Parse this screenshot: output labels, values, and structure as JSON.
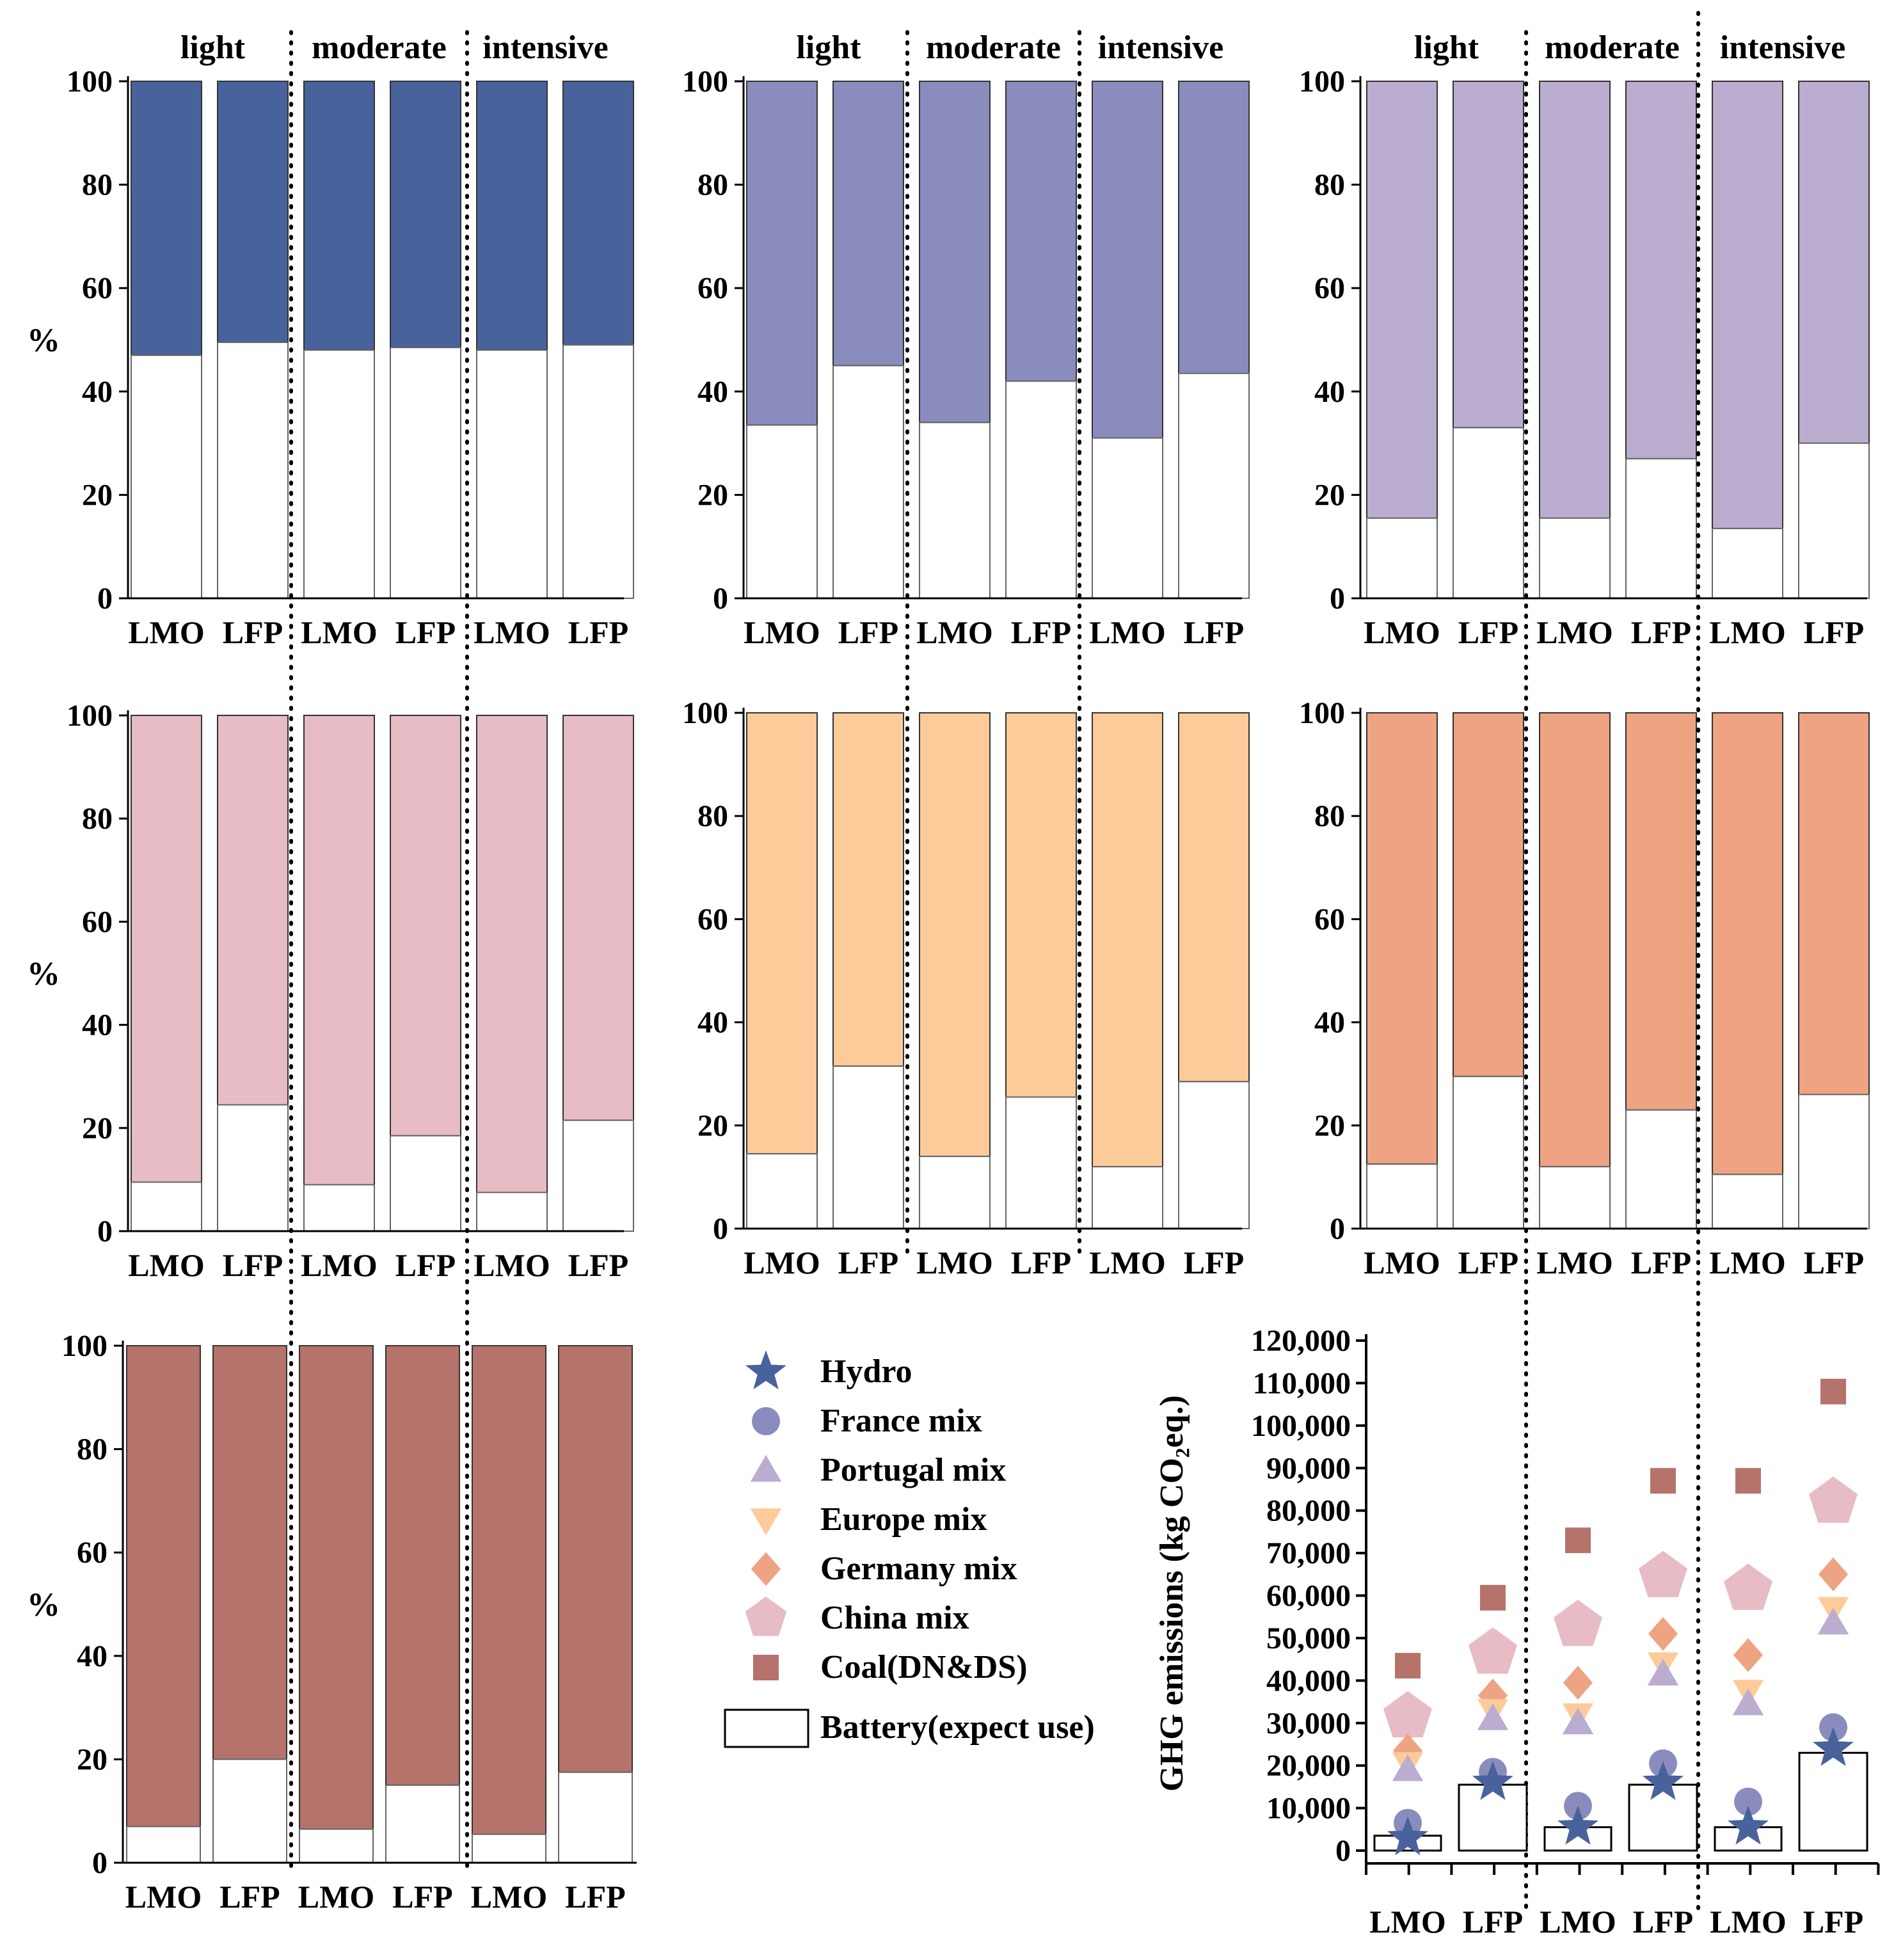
{
  "chart_data": [
    {
      "type": "bar",
      "stacked": true,
      "ylabel": "%",
      "ylim": [
        0,
        100
      ],
      "yticks": [
        "0",
        "20",
        "40",
        "60",
        "80",
        "100"
      ],
      "groups": [
        "light",
        "moderate",
        "intensive"
      ],
      "categories": [
        "LMO",
        "LFP",
        "LMO",
        "LFP",
        "LMO",
        "LFP"
      ],
      "battery_share": [
        47,
        49.5,
        48,
        48.5,
        48,
        49
      ],
      "color": "#48629b",
      "grid": false
    },
    {
      "type": "bar",
      "stacked": true,
      "ylabel": "",
      "ylim": [
        0,
        100
      ],
      "yticks": [
        "0",
        "20",
        "40",
        "60",
        "80",
        "100"
      ],
      "groups": [
        "light",
        "moderate",
        "intensive"
      ],
      "categories": [
        "LMO",
        "LFP",
        "LMO",
        "LFP",
        "LMO",
        "LFP"
      ],
      "battery_share": [
        33.5,
        45,
        34,
        42,
        31,
        43.5
      ],
      "color": "#8a8cbe",
      "grid": false
    },
    {
      "type": "bar",
      "stacked": true,
      "ylabel": "",
      "ylim": [
        0,
        100
      ],
      "yticks": [
        "0",
        "20",
        "40",
        "60",
        "80",
        "100"
      ],
      "groups": [
        "light",
        "moderate",
        "intensive"
      ],
      "categories": [
        "LMO",
        "LFP",
        "LMO",
        "LFP",
        "LMO",
        "LFP"
      ],
      "battery_share": [
        15.5,
        33,
        15.5,
        27,
        13.5,
        30
      ],
      "color": "#baadd0",
      "grid": false
    },
    {
      "type": "bar",
      "stacked": true,
      "ylabel": "%",
      "ylim": [
        0,
        100
      ],
      "yticks": [
        "0",
        "20",
        "40",
        "60",
        "80",
        "100"
      ],
      "groups": [],
      "categories": [
        "LMO",
        "LFP",
        "LMO",
        "LFP",
        "LMO",
        "LFP"
      ],
      "battery_share": [
        9.5,
        24.5,
        9,
        18.5,
        7.5,
        21.5
      ],
      "color": "#e7bcc5",
      "grid": false
    },
    {
      "type": "bar",
      "stacked": true,
      "ylabel": "",
      "ylim": [
        0,
        100
      ],
      "yticks": [
        "0",
        "20",
        "40",
        "60",
        "80",
        "100"
      ],
      "groups": [],
      "categories": [
        "LMO",
        "LFP",
        "LMO",
        "LFP",
        "LMO",
        "LFP"
      ],
      "battery_share": [
        14.5,
        31.5,
        14,
        25.5,
        12,
        28.5
      ],
      "color": "#fdcb9a",
      "grid": false
    },
    {
      "type": "bar",
      "stacked": true,
      "ylabel": "",
      "ylim": [
        0,
        100
      ],
      "yticks": [
        "0",
        "20",
        "40",
        "60",
        "80",
        "100"
      ],
      "groups": [],
      "categories": [
        "LMO",
        "LFP",
        "LMO",
        "LFP",
        "LMO",
        "LFP"
      ],
      "battery_share": [
        12.5,
        29.5,
        12,
        23,
        10.5,
        26
      ],
      "color": "#eea382",
      "grid": false
    },
    {
      "type": "bar",
      "stacked": true,
      "ylabel": "%",
      "ylim": [
        0,
        100
      ],
      "yticks": [
        "0",
        "20",
        "40",
        "60",
        "80",
        "100"
      ],
      "groups": [],
      "categories": [
        "LMO",
        "LFP",
        "LMO",
        "LFP",
        "LMO",
        "LFP"
      ],
      "battery_share": [
        7,
        20,
        6.5,
        15,
        5.5,
        17.5
      ],
      "color": "#b5736c",
      "grid": false
    },
    {
      "type": "scatter",
      "ylabel": "GHG emissions (kg CO₂eq.)",
      "ylim": [
        0,
        120000
      ],
      "yticks": [
        "0",
        "10,000",
        "20,000",
        "30,000",
        "40,000",
        "50,000",
        "60,000",
        "70,000",
        "80,000",
        "90,000",
        "100,000",
        "110,000",
        "120,000"
      ],
      "categories": [
        "LMO",
        "LFP",
        "LMO",
        "LFP",
        "LMO",
        "LFP"
      ],
      "battery_bars": [
        3500,
        15500,
        5500,
        15500,
        5500,
        23000
      ],
      "series": [
        {
          "name": "Hydro",
          "marker": "star",
          "color": "#48629b",
          "values": [
            3000,
            16000,
            5500,
            16000,
            5500,
            24000
          ]
        },
        {
          "name": "France mix",
          "marker": "circle",
          "color": "#8a8cbe",
          "values": [
            6500,
            18500,
            10500,
            20500,
            11500,
            29000
          ]
        },
        {
          "name": "Portugal mix",
          "marker": "triangle-up",
          "color": "#baadd0",
          "values": [
            19000,
            31000,
            30000,
            41500,
            34500,
            53500
          ]
        },
        {
          "name": "Europe mix",
          "marker": "triangle-down",
          "color": "#fdcb9a",
          "values": [
            20500,
            33000,
            32000,
            44000,
            37500,
            57000
          ]
        },
        {
          "name": "Germany mix",
          "marker": "diamond",
          "color": "#eea382",
          "values": [
            23500,
            36500,
            39500,
            51000,
            46000,
            65000
          ]
        },
        {
          "name": "China mix",
          "marker": "pentagon",
          "color": "#e7bcc5",
          "values": [
            31500,
            46500,
            53000,
            64500,
            61500,
            82000
          ]
        },
        {
          "name": "Coal(DN&DS)",
          "marker": "square",
          "color": "#b5736c",
          "values": [
            43500,
            59500,
            73000,
            87000,
            87000,
            108000
          ]
        }
      ],
      "legend": {
        "placement": "left",
        "battery_label": "Battery(expect use)"
      }
    }
  ]
}
